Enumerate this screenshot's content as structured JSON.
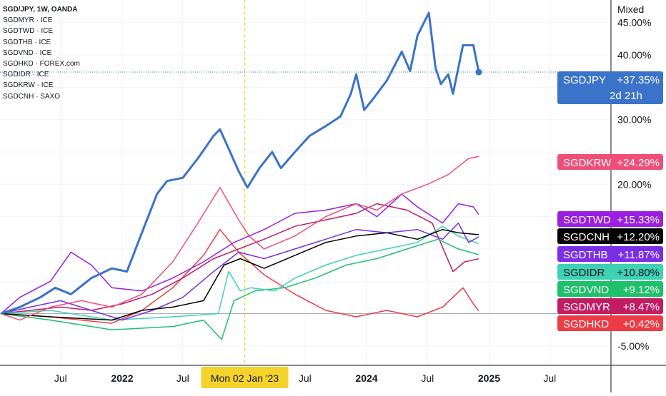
{
  "legend": [
    "SGD/JPY, 1W, OANDA",
    "SGDMYR · ICE",
    "SGDTWD · ICE",
    "SGDTHB · ICE",
    "SGDVND · ICE",
    "SGDHKD · FOREX.com",
    "SGDIDR · ICE",
    "SGDKRW · ICE",
    "SGDCNH · SAXO"
  ],
  "scale_mode": "Mixed",
  "crosshair_label": "Mon 02 Jan '23",
  "main_countdown": "2d 21h",
  "colors": {
    "SGDJPY": "#3a73c9",
    "SGDKRW": "#ef4f77",
    "SGDTWD": "#9b1fe0",
    "SGDCNH": "#000000",
    "SGDTHB": "#7a2fe6",
    "SGDIDR": "#3fd1b4",
    "SGDVND": "#1ec06a",
    "SGDMYR": "#c21c63",
    "SGDHKD": "#ee3b44",
    "crosshair": "#f5d32a"
  },
  "chart_data": {
    "type": "line",
    "x_labels": [
      "Jul",
      "2022",
      "Jul",
      "Jul",
      "2024",
      "Jul",
      "2025",
      "Jul"
    ],
    "y_ticks": [
      "45.00%",
      "40.00%",
      "30.00%",
      "20.00%",
      "-5.00%"
    ],
    "ylim": [
      -8,
      48.5
    ],
    "xlim": [
      "2021-01-01",
      "2025-12-31"
    ],
    "grid": true,
    "series": [
      {
        "name": "SGDJPY",
        "last_label": "+37.35%",
        "values": [
          [
            "2021-01-04",
            0.0
          ],
          [
            "2021-03-01",
            1.0
          ],
          [
            "2021-05-01",
            2.5
          ],
          [
            "2021-06-15",
            4.0
          ],
          [
            "2021-08-01",
            3.0
          ],
          [
            "2021-10-01",
            5.5
          ],
          [
            "2021-12-01",
            7.0
          ],
          [
            "2022-01-15",
            6.5
          ],
          [
            "2022-03-01",
            12.5
          ],
          [
            "2022-04-15",
            18.5
          ],
          [
            "2022-05-15",
            20.5
          ],
          [
            "2022-07-01",
            21.0
          ],
          [
            "2022-08-15",
            24.0
          ],
          [
            "2022-10-01",
            27.5
          ],
          [
            "2022-10-20",
            28.5
          ],
          [
            "2022-11-15",
            25.5
          ],
          [
            "2022-12-15",
            22.0
          ],
          [
            "2023-01-10",
            19.5
          ],
          [
            "2023-02-15",
            22.5
          ],
          [
            "2023-03-25",
            25.0
          ],
          [
            "2023-04-20",
            22.5
          ],
          [
            "2023-06-01",
            25.0
          ],
          [
            "2023-07-15",
            27.5
          ],
          [
            "2023-09-01",
            29.0
          ],
          [
            "2023-10-15",
            30.5
          ],
          [
            "2023-11-15",
            34.0
          ],
          [
            "2023-12-01",
            37.0
          ],
          [
            "2023-12-25",
            31.5
          ],
          [
            "2024-01-25",
            33.5
          ],
          [
            "2024-03-01",
            36.0
          ],
          [
            "2024-04-15",
            40.5
          ],
          [
            "2024-05-10",
            37.5
          ],
          [
            "2024-06-01",
            43.0
          ],
          [
            "2024-07-05",
            46.5
          ],
          [
            "2024-07-25",
            38.0
          ],
          [
            "2024-08-10",
            35.5
          ],
          [
            "2024-09-01",
            37.0
          ],
          [
            "2024-09-15",
            34.0
          ],
          [
            "2024-10-15",
            41.5
          ],
          [
            "2024-11-15",
            41.5
          ],
          [
            "2024-12-01",
            37.35
          ]
        ]
      },
      {
        "name": "SGDKRW",
        "last_label": "+24.29%",
        "values": [
          [
            "2021-01-04",
            0.0
          ],
          [
            "2021-03-01",
            -1.0
          ],
          [
            "2021-06-01",
            1.0
          ],
          [
            "2021-09-01",
            2.0
          ],
          [
            "2021-12-01",
            1.0
          ],
          [
            "2022-03-01",
            3.0
          ],
          [
            "2022-06-01",
            8.0
          ],
          [
            "2022-08-15",
            14.0
          ],
          [
            "2022-10-20",
            19.5
          ],
          [
            "2022-12-15",
            14.5
          ],
          [
            "2023-01-15",
            12.0
          ],
          [
            "2023-03-01",
            10.0
          ],
          [
            "2023-06-01",
            12.0
          ],
          [
            "2023-09-01",
            15.0
          ],
          [
            "2023-12-01",
            17.0
          ],
          [
            "2024-02-01",
            16.0
          ],
          [
            "2024-04-15",
            18.5
          ],
          [
            "2024-07-01",
            20.0
          ],
          [
            "2024-09-01",
            21.5
          ],
          [
            "2024-11-01",
            24.0
          ],
          [
            "2024-12-01",
            24.29
          ]
        ]
      },
      {
        "name": "SGDTWD",
        "last_label": "+15.33%",
        "values": [
          [
            "2021-01-04",
            0.0
          ],
          [
            "2021-03-01",
            2.5
          ],
          [
            "2021-06-01",
            5.0
          ],
          [
            "2021-08-01",
            9.5
          ],
          [
            "2021-10-01",
            7.5
          ],
          [
            "2021-12-01",
            4.0
          ],
          [
            "2022-03-01",
            3.5
          ],
          [
            "2022-06-01",
            5.5
          ],
          [
            "2022-09-01",
            8.0
          ],
          [
            "2022-12-01",
            11.0
          ],
          [
            "2023-03-01",
            13.0
          ],
          [
            "2023-06-01",
            15.5
          ],
          [
            "2023-09-01",
            16.0
          ],
          [
            "2023-12-01",
            17.0
          ],
          [
            "2024-02-01",
            15.0
          ],
          [
            "2024-04-15",
            18.5
          ],
          [
            "2024-06-01",
            16.5
          ],
          [
            "2024-08-15",
            14.0
          ],
          [
            "2024-10-01",
            17.0
          ],
          [
            "2024-11-15",
            16.5
          ],
          [
            "2024-12-01",
            15.33
          ]
        ]
      },
      {
        "name": "SGDCNH",
        "last_label": "+12.20%",
        "values": [
          [
            "2021-01-04",
            0.0
          ],
          [
            "2021-06-01",
            -0.5
          ],
          [
            "2021-12-01",
            -1.0
          ],
          [
            "2022-03-01",
            0.5
          ],
          [
            "2022-06-01",
            1.0
          ],
          [
            "2022-09-01",
            2.0
          ],
          [
            "2022-11-01",
            7.5
          ],
          [
            "2022-12-20",
            8.5
          ],
          [
            "2023-03-01",
            7.0
          ],
          [
            "2023-06-01",
            9.0
          ],
          [
            "2023-09-01",
            11.0
          ],
          [
            "2023-12-01",
            12.0
          ],
          [
            "2024-03-01",
            12.5
          ],
          [
            "2024-06-01",
            11.5
          ],
          [
            "2024-08-15",
            13.0
          ],
          [
            "2024-10-01",
            12.5
          ],
          [
            "2024-12-01",
            12.2
          ]
        ]
      },
      {
        "name": "SGDTHB",
        "last_label": "+11.87%",
        "values": [
          [
            "2021-01-04",
            0.0
          ],
          [
            "2021-04-01",
            1.0
          ],
          [
            "2021-07-01",
            2.0
          ],
          [
            "2021-10-01",
            0.5
          ],
          [
            "2022-01-01",
            -1.0
          ],
          [
            "2022-04-01",
            0.5
          ],
          [
            "2022-07-01",
            2.5
          ],
          [
            "2022-10-01",
            6.5
          ],
          [
            "2022-12-15",
            9.5
          ],
          [
            "2023-03-01",
            8.5
          ],
          [
            "2023-06-01",
            10.0
          ],
          [
            "2023-09-01",
            11.5
          ],
          [
            "2023-12-01",
            13.0
          ],
          [
            "2024-03-01",
            12.5
          ],
          [
            "2024-06-01",
            13.0
          ],
          [
            "2024-08-15",
            11.5
          ],
          [
            "2024-10-01",
            14.0
          ],
          [
            "2024-11-01",
            11.0
          ],
          [
            "2024-12-01",
            11.87
          ]
        ]
      },
      {
        "name": "SGDIDR",
        "last_label": "+10.80%",
        "values": [
          [
            "2021-01-04",
            0.0
          ],
          [
            "2021-06-01",
            0.5
          ],
          [
            "2021-12-01",
            -1.0
          ],
          [
            "2022-06-01",
            -0.5
          ],
          [
            "2022-10-15",
            0.0
          ],
          [
            "2022-11-15",
            6.5
          ],
          [
            "2022-12-20",
            3.5
          ],
          [
            "2023-01-20",
            4.0
          ],
          [
            "2023-04-01",
            3.5
          ],
          [
            "2023-06-01",
            5.5
          ],
          [
            "2023-09-01",
            7.5
          ],
          [
            "2023-12-01",
            9.0
          ],
          [
            "2024-03-01",
            10.0
          ],
          [
            "2024-06-01",
            11.0
          ],
          [
            "2024-08-15",
            13.5
          ],
          [
            "2024-10-01",
            12.0
          ],
          [
            "2024-12-01",
            10.8
          ]
        ]
      },
      {
        "name": "SGDVND",
        "last_label": "+9.12%",
        "values": [
          [
            "2021-01-04",
            0.0
          ],
          [
            "2021-06-01",
            -1.0
          ],
          [
            "2021-12-01",
            -2.5
          ],
          [
            "2022-06-01",
            -2.0
          ],
          [
            "2022-09-01",
            -1.0
          ],
          [
            "2022-10-25",
            -4.0
          ],
          [
            "2022-12-01",
            2.0
          ],
          [
            "2023-02-01",
            3.5
          ],
          [
            "2023-05-01",
            4.0
          ],
          [
            "2023-08-01",
            5.5
          ],
          [
            "2023-11-01",
            7.5
          ],
          [
            "2024-02-01",
            8.5
          ],
          [
            "2024-05-01",
            10.0
          ],
          [
            "2024-08-01",
            11.5
          ],
          [
            "2024-10-01",
            10.0
          ],
          [
            "2024-12-01",
            9.12
          ]
        ]
      },
      {
        "name": "SGDMYR",
        "last_label": "+8.47%",
        "values": [
          [
            "2021-01-04",
            0.0
          ],
          [
            "2021-04-01",
            0.5
          ],
          [
            "2021-07-01",
            1.0
          ],
          [
            "2021-10-01",
            0.5
          ],
          [
            "2022-01-01",
            1.5
          ],
          [
            "2022-04-01",
            3.0
          ],
          [
            "2022-07-01",
            5.5
          ],
          [
            "2022-10-01",
            8.5
          ],
          [
            "2022-12-15",
            10.0
          ],
          [
            "2023-03-01",
            11.5
          ],
          [
            "2023-06-01",
            13.5
          ],
          [
            "2023-09-01",
            14.5
          ],
          [
            "2023-12-01",
            15.5
          ],
          [
            "2024-02-01",
            17.0
          ],
          [
            "2024-05-01",
            16.0
          ],
          [
            "2024-07-15",
            14.0
          ],
          [
            "2024-09-15",
            6.5
          ],
          [
            "2024-10-20",
            8.0
          ],
          [
            "2024-12-01",
            8.47
          ]
        ]
      },
      {
        "name": "SGDHKD",
        "last_label": "+0.42%",
        "values": [
          [
            "2021-01-04",
            0.0
          ],
          [
            "2021-06-01",
            -0.5
          ],
          [
            "2021-12-01",
            -1.5
          ],
          [
            "2022-03-01",
            0.5
          ],
          [
            "2022-06-01",
            4.0
          ],
          [
            "2022-09-01",
            9.0
          ],
          [
            "2022-10-20",
            13.0
          ],
          [
            "2022-12-15",
            9.5
          ],
          [
            "2023-03-01",
            6.0
          ],
          [
            "2023-06-01",
            3.0
          ],
          [
            "2023-09-01",
            0.5
          ],
          [
            "2023-12-01",
            -0.5
          ],
          [
            "2024-03-01",
            0.5
          ],
          [
            "2024-06-01",
            -0.5
          ],
          [
            "2024-08-15",
            1.0
          ],
          [
            "2024-10-15",
            4.0
          ],
          [
            "2024-11-15",
            1.5
          ],
          [
            "2024-12-01",
            0.42
          ]
        ]
      }
    ]
  }
}
